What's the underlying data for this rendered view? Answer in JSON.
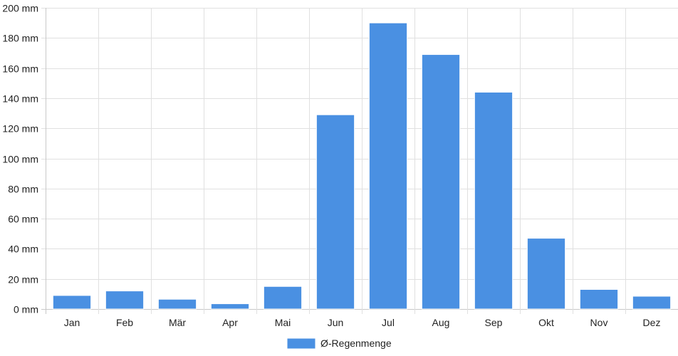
{
  "chart_data": {
    "type": "bar",
    "categories": [
      "Jan",
      "Feb",
      "Mär",
      "Apr",
      "Mai",
      "Jun",
      "Jul",
      "Aug",
      "Sep",
      "Okt",
      "Nov",
      "Dez"
    ],
    "series": [
      {
        "name": "Ø-Regenmenge",
        "values": [
          9,
          12,
          6.5,
          3.5,
          15,
          129,
          190,
          169,
          144,
          47,
          13,
          8.5
        ],
        "color": "#4a90e2"
      }
    ],
    "y_unit": "mm",
    "y_ticks": [
      0,
      20,
      40,
      60,
      80,
      100,
      120,
      140,
      160,
      180,
      200
    ],
    "ylim": [
      0,
      200
    ],
    "grid": true,
    "legend_position": "bottom-center",
    "colors": {
      "bar_fill": "#4a90e2",
      "bar_border": "#ffffff",
      "grid": "#e0e0e0",
      "axis": "#c8c8c8",
      "text": "#222222"
    }
  }
}
